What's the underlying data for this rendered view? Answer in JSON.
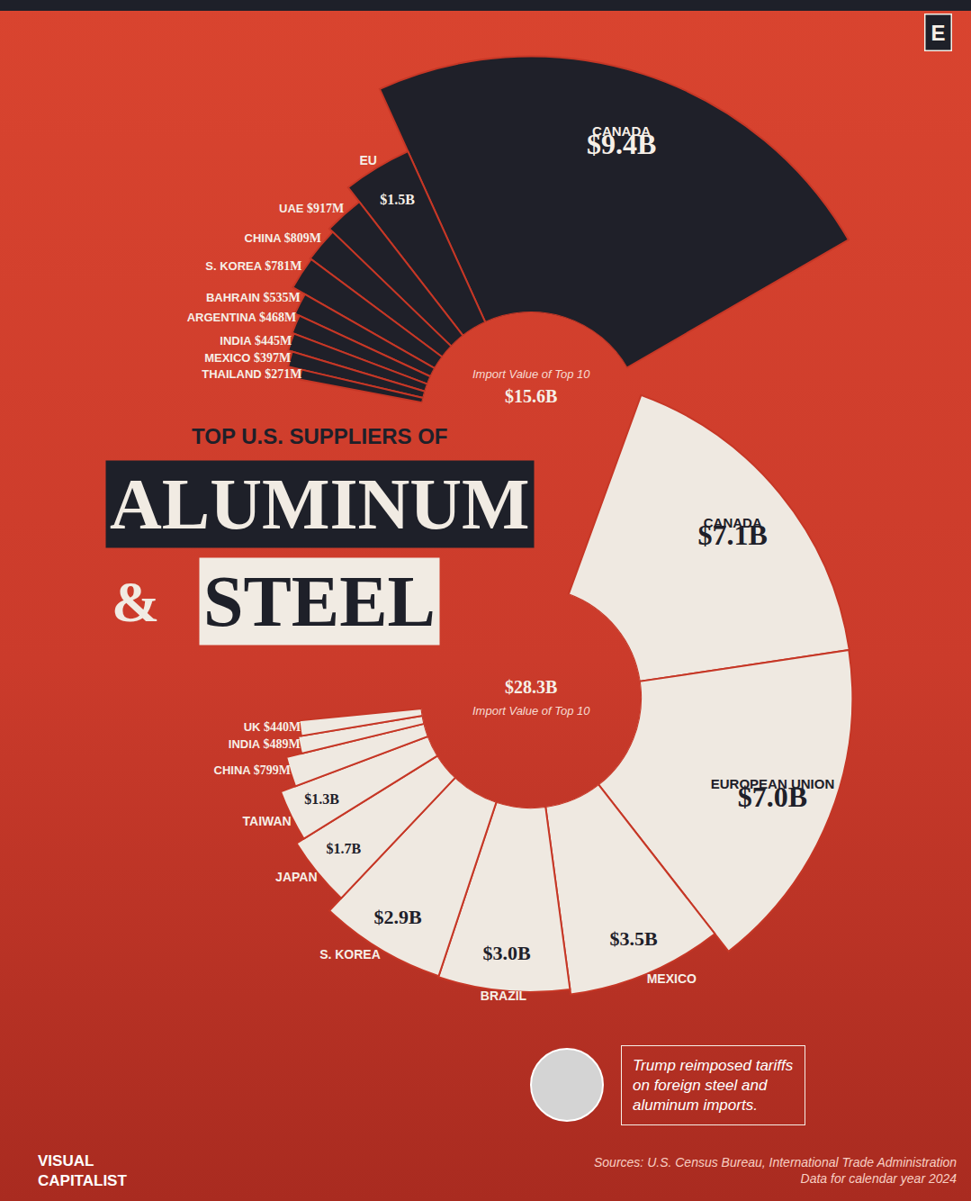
{
  "header": {
    "kicker": "TOP U.S. SUPPLIERS OF",
    "title": "ALUMINUM",
    "joiner": "&",
    "title_2": "STEEL",
    "badge": "E"
  },
  "chart_data": [
    {
      "type": "barpolar",
      "label": "Import Value of Top 10",
      "total": 15.6,
      "total_label": "$15.6B",
      "categories": [
        "CANADA",
        "EU",
        "UAE",
        "CHINA",
        "S. KOREA",
        "BAHRAIN",
        "ARGENTINA",
        "INDIA",
        "MEXICO",
        "THAILAND"
      ],
      "values": [
        9.4,
        1.5,
        0.917,
        0.809,
        0.781,
        0.535,
        0.468,
        0.445,
        0.397,
        0.271
      ],
      "value_labels": [
        "$9.4B",
        "$1.5B",
        "$917M",
        "$809M",
        "$781M",
        "$535M",
        "$468M",
        "$445M",
        "$397M",
        "$271M"
      ],
      "color": "#1f2029",
      "ylim": [
        0.01,
        10
      ],
      "log": true,
      "tick_labels": false,
      "data_labels": true
    },
    {
      "type": "barpolar",
      "label": "Import Value of Top 10",
      "total": 28.3,
      "total_label": "$28.3B",
      "categories": [
        "CANADA",
        "EUROPEAN UNION",
        "MEXICO",
        "BRAZIL",
        "S. KOREA",
        "JAPAN",
        "TAIWAN",
        "CHINA",
        "INDIA",
        "UK"
      ],
      "values": [
        7.1,
        7.0,
        3.5,
        3.0,
        2.9,
        1.7,
        1.3,
        0.799,
        0.489,
        0.44
      ],
      "value_labels": [
        "$7.1B",
        "$7.0B",
        "$3.5B",
        "$3.0B",
        "$2.9B",
        "$1.7B",
        "$1.3B",
        "$799M",
        "$489M",
        "$440M"
      ],
      "color": "#efe9e1",
      "ylim": [
        0.01,
        10
      ],
      "log": true,
      "tick_labels": false,
      "data_labels": true
    }
  ],
  "note": [
    "Trump reimposed tariffs",
    "on foreign steel and",
    "aluminum imports."
  ],
  "source": [
    "Sources: U.S. Census Bureau, International Trade Administration",
    "Data for calendar year 2024"
  ],
  "logo": [
    "VISUAL",
    "CAPITALIST"
  ]
}
